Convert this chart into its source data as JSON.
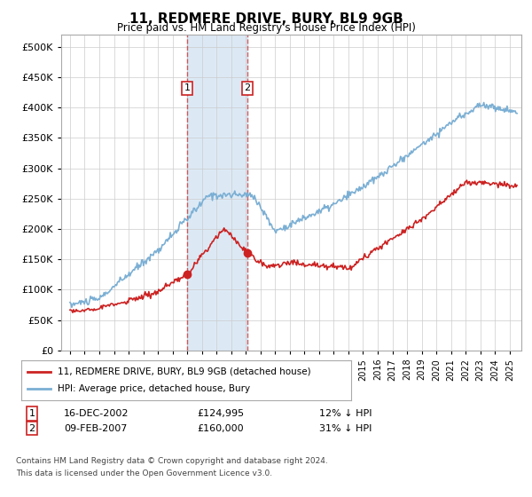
{
  "title": "11, REDMERE DRIVE, BURY, BL9 9GB",
  "subtitle": "Price paid vs. HM Land Registry's House Price Index (HPI)",
  "hpi_color": "#7bafd4",
  "price_color": "#cc2222",
  "sale1_date": "16-DEC-2002",
  "sale1_price": 124995,
  "sale1_label": "12% ↓ HPI",
  "sale1_x": 2003.0,
  "sale2_date": "09-FEB-2007",
  "sale2_price": 160000,
  "sale2_label": "31% ↓ HPI",
  "sale2_x": 2007.1,
  "legend_line1": "11, REDMERE DRIVE, BURY, BL9 9GB (detached house)",
  "legend_line2": "HPI: Average price, detached house, Bury",
  "footer1": "Contains HM Land Registry data © Crown copyright and database right 2024.",
  "footer2": "This data is licensed under the Open Government Licence v3.0.",
  "ylim_max": 520000,
  "background_color": "#ffffff",
  "shaded_color": "#dce9f5"
}
